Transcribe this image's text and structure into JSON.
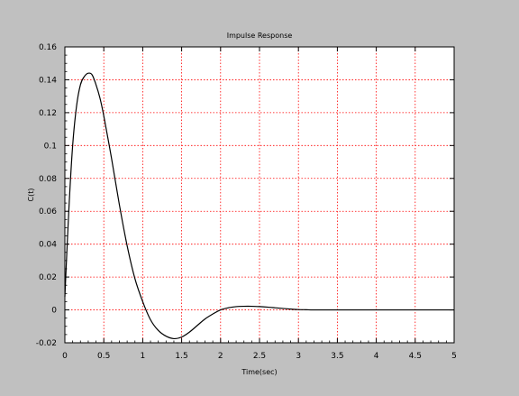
{
  "chart_data": {
    "type": "line",
    "title": "Impulse Response",
    "xlabel": "Time(sec)",
    "ylabel": "C(t)",
    "xlim": [
      0,
      5
    ],
    "ylim": [
      -0.02,
      0.16
    ],
    "grid": true,
    "x_ticks": [
      0,
      0.5,
      1,
      1.5,
      2,
      2.5,
      3,
      3.5,
      4,
      4.5,
      5
    ],
    "x_tick_labels": [
      "0",
      "0.5",
      "1",
      "1.5",
      "2",
      "2.5",
      "3",
      "3.5",
      "4",
      "4.5",
      "5"
    ],
    "y_ticks": [
      -0.02,
      0,
      0.02,
      0.04,
      0.06,
      0.08,
      0.1,
      0.12,
      0.14,
      0.16
    ],
    "y_tick_labels": [
      "-0.02",
      "0",
      "0.02",
      "0.04",
      "0.06",
      "0.08",
      "0.1",
      "0.12",
      "0.14",
      "0.16"
    ],
    "series": [
      {
        "x": [
          0,
          0.05,
          0.1,
          0.15,
          0.2,
          0.25,
          0.3,
          0.35,
          0.4,
          0.45,
          0.5,
          0.6,
          0.7,
          0.8,
          0.9,
          1.0,
          1.1,
          1.2,
          1.3,
          1.4,
          1.5,
          1.6,
          1.7,
          1.8,
          1.9,
          2.0,
          2.1,
          2.2,
          2.3,
          2.4,
          2.5,
          2.6,
          2.7,
          2.8,
          2.9,
          3.0,
          3.1,
          3.2,
          3.5,
          4.0,
          4.5,
          5.0
        ],
        "y": [
          0.008,
          0.06,
          0.1,
          0.124,
          0.137,
          0.142,
          0.144,
          0.143,
          0.137,
          0.129,
          0.118,
          0.092,
          0.064,
          0.039,
          0.019,
          0.005,
          -0.006,
          -0.0125,
          -0.016,
          -0.0175,
          -0.0165,
          -0.0135,
          -0.0095,
          -0.0055,
          -0.0025,
          0.0,
          0.0013,
          0.002,
          0.0022,
          0.0022,
          0.002,
          0.0017,
          0.0013,
          0.0009,
          0.0005,
          0.0002,
          0.0001,
          0.0,
          0.0,
          0.0,
          0.0,
          0.0
        ]
      }
    ],
    "colors": {
      "background": "#c0c0c0",
      "plot_area": "#ffffff",
      "grid": "#ff0000",
      "line": "#000000"
    }
  }
}
